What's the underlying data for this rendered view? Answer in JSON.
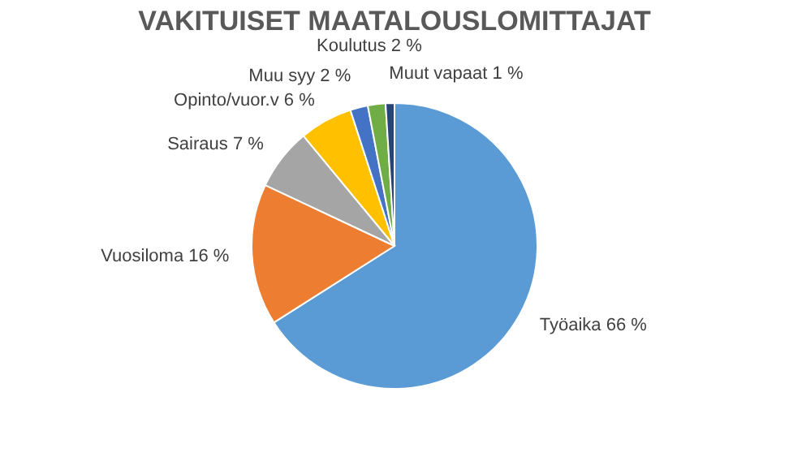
{
  "chart_data": {
    "type": "pie",
    "title": "VAKITUISET MAATALOUSLOMITTAJAT",
    "categories": [
      "Työaika",
      "Vuosiloma",
      "Sairaus",
      "Opinto/vuor.v",
      "Muu syy",
      "Koulutus",
      "Muut vapaat"
    ],
    "values": [
      66,
      16,
      7,
      6,
      2,
      2,
      1
    ],
    "value_labels": [
      "66 %",
      "16 %",
      "7 %",
      "6 %",
      "2 %",
      "2 %",
      "1 %"
    ],
    "colors": [
      "#5b9bd5",
      "#ed7d31",
      "#a5a5a5",
      "#ffc000",
      "#4472c4",
      "#70ad47",
      "#264478"
    ],
    "legend": false
  }
}
